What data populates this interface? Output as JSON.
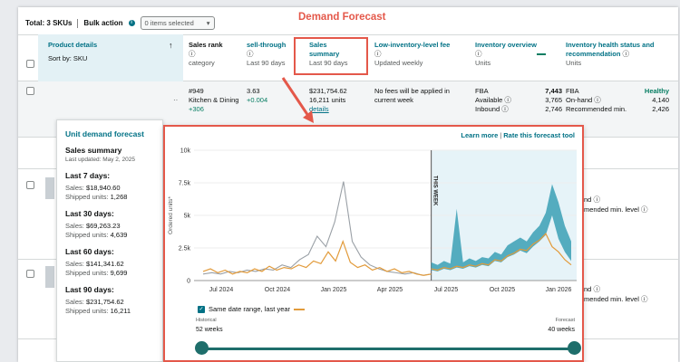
{
  "header": {
    "total": "Total: 3 SKUs",
    "bulk_action": "Bulk action",
    "selected": "0 items selected",
    "annotation_title": "Demand Forecast"
  },
  "columns": {
    "product": {
      "title": "Product details",
      "sub": "Sort by: SKU"
    },
    "sales_rank": {
      "title": "Sales rank",
      "sub": "category"
    },
    "sell_through": {
      "title": "sell-through",
      "sub": "Last 90 days"
    },
    "sales_summary": {
      "title1": "Sales",
      "title2": "summary",
      "sub": "Last 90 days"
    },
    "low_inv_fee": {
      "title": "Low-inventory-level fee",
      "sub": "Updated weekly"
    },
    "inv_overview": {
      "title": "Inventory overview",
      "sub": "Units"
    },
    "inv_health": {
      "title1": "Inventory health status and",
      "title2": "recommendation",
      "sub": "Units"
    }
  },
  "row1": {
    "rank": "#949",
    "category": "Kitchen & Dining",
    "rank_change": "+306",
    "sell_through": "3.63",
    "sell_through_change": "+0.004",
    "sales": "$231,754.62",
    "units": "16,211 units",
    "details": "details",
    "fee1": "No fees will be applied in",
    "fee2": "current week",
    "fba": "FBA",
    "fba_value": "7,443",
    "available_label": "Available",
    "available_value": "3,765",
    "inbound_label": "Inbound",
    "inbound_value": "2,746",
    "health_fba": "FBA",
    "health_status": "Healthy",
    "on_hand_label": "On-hand",
    "on_hand_value": "4,140",
    "rec_min": "Recommended min.",
    "rec_min_value": "2,426"
  },
  "other_rows": [
    {
      "line1": "nd",
      "line2": "mended min. level"
    },
    {
      "line1": "nd",
      "line2": "mended min. level"
    }
  ],
  "panel": {
    "title": "Unit demand forecast",
    "summary": "Sales summary",
    "updated": "Last updated: May 2, 2025",
    "periods": [
      {
        "label": "Last 7 days:",
        "sales": "$18,940.60",
        "units": "1,268"
      },
      {
        "label": "Last 30 days:",
        "sales": "$69,263.23",
        "units": "4,639"
      },
      {
        "label": "Last 60 days:",
        "sales": "$141,341.62",
        "units": "9,699"
      },
      {
        "label": "Last 90 days:",
        "sales": "$231,754.62",
        "units": "16,211"
      }
    ],
    "sales_label": "Sales:",
    "units_label": "Shipped units:"
  },
  "chart_popup": {
    "learn_more": "Learn more",
    "rate": "Rate this forecast tool",
    "legend": "Same date range, last year",
    "historical_label": "Historical",
    "historical_value": "52 weeks",
    "forecast_label": "Forecast",
    "forecast_value": "40 weeks"
  },
  "chart_data": {
    "type": "line",
    "ylabel": "Ordered units*",
    "ylim": [
      0,
      10000
    ],
    "yticks": [
      "0",
      "2.5k",
      "5k",
      "7.5k",
      "10k"
    ],
    "yticks_values": [
      0,
      2500,
      5000,
      7500,
      10000
    ],
    "xticks": [
      "Jul 2024",
      "Oct 2024",
      "Jan 2025",
      "Apr 2025",
      "Jul 2025",
      "Oct 2025",
      "Jan 2026"
    ],
    "marker_label": "THIS WEEK",
    "colors": {
      "historical": "#e29b3b",
      "last_year": "#9aa0a6",
      "forecast_band": "#3a9fb5",
      "forecast_line": "#e29b3b",
      "future_bg": "#e6f3f8"
    },
    "series": [
      {
        "name": "historical",
        "values": [
          700,
          900,
          600,
          800,
          500,
          700,
          600,
          900,
          700,
          1100,
          800,
          1000,
          900,
          1200,
          1000,
          1500,
          1300,
          2200,
          1500,
          3000,
          1400,
          1000,
          1200,
          800,
          1000,
          700,
          900,
          600,
          700,
          500,
          400,
          500
        ]
      },
      {
        "name": "last year",
        "values": [
          500,
          600,
          500,
          700,
          600,
          800,
          700,
          900,
          800,
          1200,
          1000,
          1600,
          2000,
          3400,
          2600,
          4500,
          7600,
          3000,
          1800,
          1200,
          900,
          700,
          600,
          500,
          600,
          400,
          500
        ]
      },
      {
        "name": "forecast",
        "lower": [
          800,
          700,
          900,
          800,
          1000,
          900,
          1100,
          1000,
          1200,
          1100,
          1500,
          1400,
          1800,
          2000,
          2300,
          2100,
          2600,
          3000,
          3500,
          5000,
          3200,
          2200,
          1500
        ],
        "upper": [
          1400,
          1200,
          1500,
          1300,
          5500,
          1400,
          1700,
          1500,
          1800,
          1700,
          2200,
          2000,
          2700,
          3000,
          3300,
          3000,
          3700,
          4200,
          5200,
          7400,
          6000,
          4200,
          3000
        ],
        "mid": [
          900,
          800,
          1000,
          900,
          1100,
          1000,
          1200,
          1100,
          1300,
          1200,
          1600,
          1500,
          1900,
          2100,
          2400,
          2300,
          2800,
          3100,
          3600,
          2600,
          2200,
          1600,
          1200
        ]
      }
    ]
  }
}
